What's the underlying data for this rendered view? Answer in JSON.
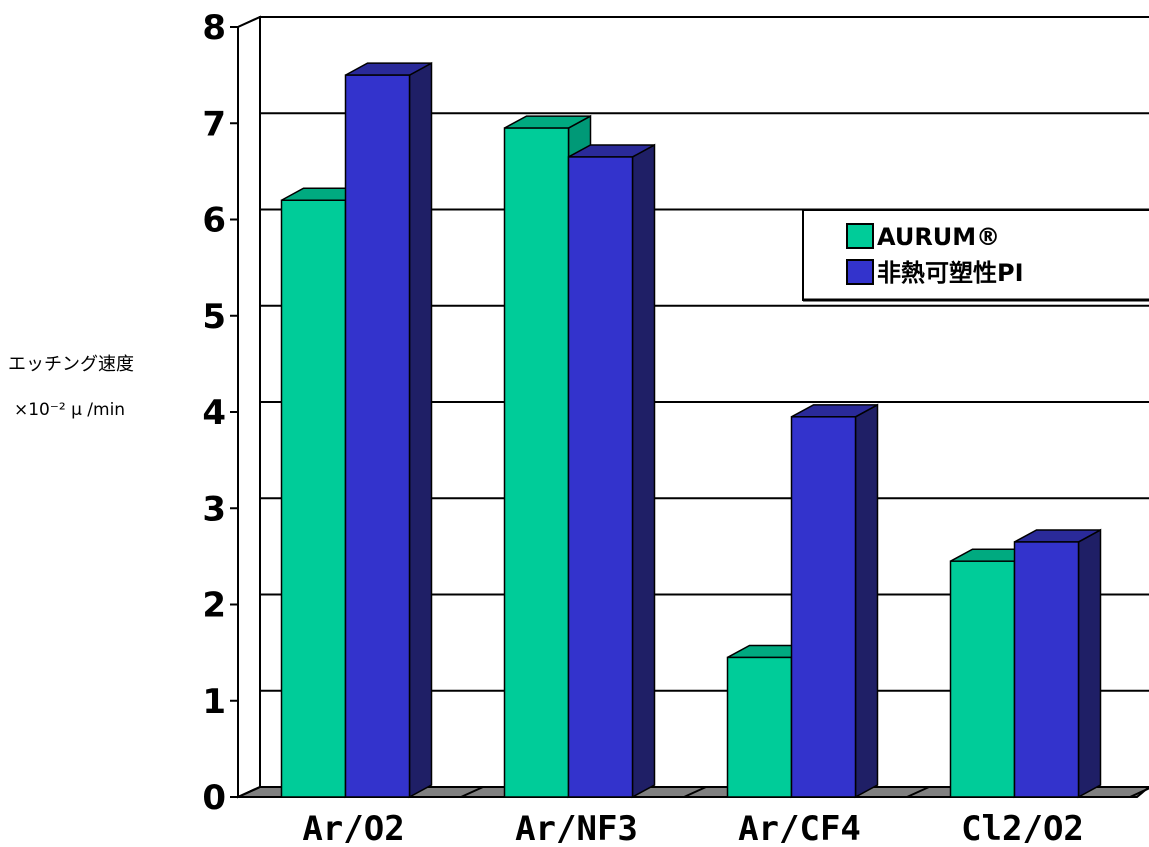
{
  "chart_data": {
    "type": "bar",
    "ylabel_line1": "エッチング速度",
    "ylabel_line2": "×10⁻² μ /min",
    "ylim": [
      0,
      8
    ],
    "yticks": [
      "0",
      "1",
      "2",
      "3",
      "4",
      "5",
      "6",
      "7",
      "8"
    ],
    "categories": [
      "Ar/O2",
      "Ar/NF3",
      "Ar/CF4",
      "Cl2/O2"
    ],
    "series": [
      {
        "name": "AURUM®",
        "values": [
          6.2,
          6.95,
          1.45,
          2.45
        ]
      },
      {
        "name": "非熱可塑性PI",
        "values": [
          7.5,
          6.65,
          3.95,
          2.65
        ]
      }
    ],
    "legend_position": "right",
    "grid": true,
    "colors": {
      "series_front": [
        "#00cc99",
        "#3333cc"
      ],
      "series_side": [
        "#009977",
        "#1f1f66"
      ],
      "series_top": [
        "#00aa80",
        "#2a2a99"
      ],
      "floor": "#808080",
      "wall": "#ffffff"
    }
  }
}
